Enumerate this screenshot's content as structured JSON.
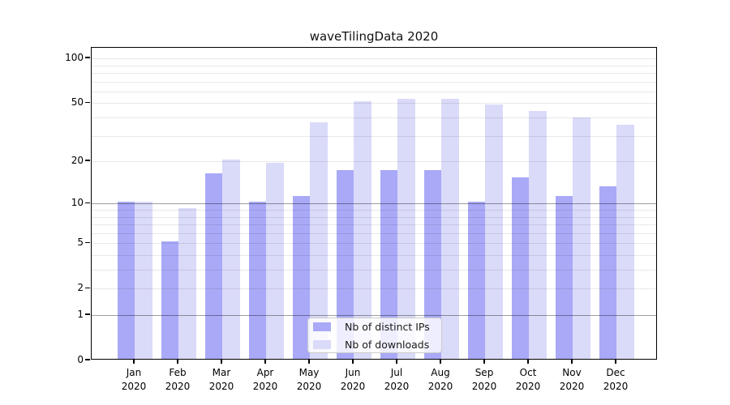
{
  "figure": {
    "title": "waveTilingData 2020"
  },
  "chart_data": {
    "type": "bar",
    "title": "waveTilingData 2020",
    "categories": [
      "Jan 2020",
      "Feb 2020",
      "Mar 2020",
      "Apr 2020",
      "May 2020",
      "Jun 2020",
      "Jul 2020",
      "Aug 2020",
      "Sep 2020",
      "Oct 2020",
      "Nov 2020",
      "Dec 2020"
    ],
    "series": [
      {
        "name": "Nb of distinct IPs",
        "color": "#a9a9f7",
        "values": [
          10,
          5,
          16,
          10,
          11,
          17,
          17,
          17,
          10,
          15,
          11,
          13
        ]
      },
      {
        "name": "Nb of downloads",
        "color": "#dadaf9",
        "values": [
          10,
          9,
          20,
          19,
          36,
          50,
          52,
          52,
          48,
          43,
          39,
          35
        ]
      }
    ],
    "xlabel": "",
    "ylabel": "",
    "yscale": "symlog (position proportional to log10(1+value))",
    "ylim": [
      0,
      115
    ],
    "yticks": [
      0,
      1,
      2,
      5,
      10,
      20,
      50,
      100
    ],
    "major_gridlines": [
      1,
      10
    ],
    "minor_gridlines": [
      2,
      3,
      4,
      5,
      6,
      7,
      8,
      9,
      20,
      30,
      40,
      50,
      60,
      70,
      80,
      90,
      100
    ],
    "grid": true,
    "legend_position": "lower center"
  },
  "colors": {
    "axis": "#000000",
    "grid_major": "rgba(0,0,0,0.38)",
    "grid_minor": "rgba(0,0,0,0.09)",
    "legend_border": "#cccccc",
    "legend_background": "rgba(255,255,255,0.8)"
  }
}
